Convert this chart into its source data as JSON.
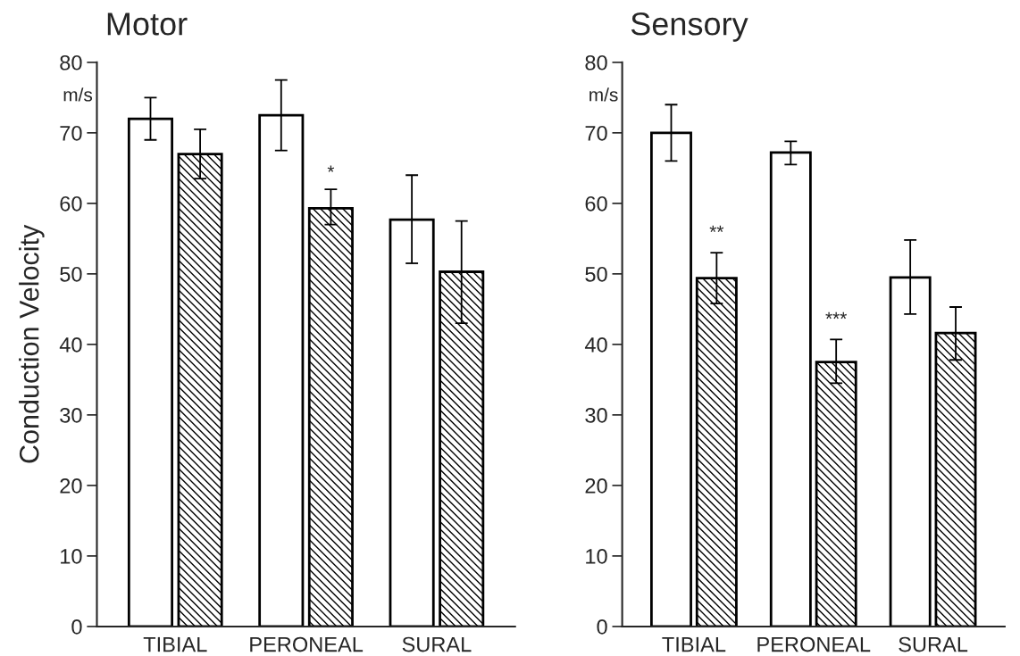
{
  "chart_data": [
    {
      "type": "bar",
      "title": "Motor",
      "ylabel": "Conduction Velocity",
      "categories": [
        "TIBIAL",
        "PERONEAL",
        "SURAL"
      ],
      "ylim": [
        0,
        80
      ],
      "yticks": [
        0,
        10,
        20,
        30,
        40,
        50,
        60,
        70,
        80
      ],
      "grid": false,
      "legend": false,
      "series": [
        {
          "color": "#ffffff",
          "values": [
            72,
            72.5,
            57.7
          ],
          "errors": [
            [
              69,
              75
            ],
            [
              67.5,
              77.5
            ],
            [
              51.5,
              64
            ]
          ]
        },
        {
          "color": "#000000",
          "values": [
            67,
            59.3,
            50.3
          ],
          "errors": [
            [
              63.5,
              70.5
            ],
            [
              57,
              62
            ],
            [
              43,
              57.5
            ]
          ]
        }
      ],
      "annotations": [
        "m/s",
        {
          "text": "*",
          "x": "PERONEAL",
          "y": 63
        }
      ]
    },
    {
      "type": "bar",
      "title": "Sensory",
      "categories": [
        "TIBIAL",
        "PERONEAL",
        "SURAL"
      ],
      "ylim": [
        0,
        80
      ],
      "yticks": [
        0,
        10,
        20,
        30,
        40,
        50,
        60,
        70,
        80
      ],
      "grid": false,
      "legend": false,
      "series": [
        {
          "color": "#ffffff",
          "values": [
            70,
            67.2,
            49.5
          ],
          "errors": [
            [
              66,
              74
            ],
            [
              65.5,
              68.8
            ],
            [
              44.3,
              54.8
            ]
          ]
        },
        {
          "color": "#000000",
          "values": [
            49.4,
            37.5,
            41.6
          ],
          "errors": [
            [
              45.8,
              53
            ],
            [
              34.5,
              40.7
            ],
            [
              37.8,
              45.3
            ]
          ]
        }
      ],
      "annotations": [
        "m/s",
        {
          "text": "**",
          "x": "TIBIAL",
          "y": 54.5
        },
        {
          "text": "***",
          "x": "PERONEAL",
          "y": 42.2
        }
      ]
    }
  ]
}
